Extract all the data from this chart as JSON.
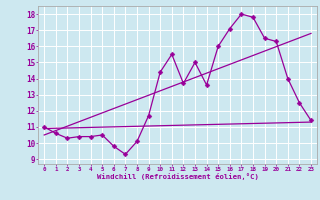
{
  "xlabel": "Windchill (Refroidissement éolien,°C)",
  "background_color": "#cde8f0",
  "grid_color": "#ffffff",
  "line_color": "#990099",
  "xlim": [
    -0.5,
    23.5
  ],
  "ylim": [
    8.7,
    18.5
  ],
  "xticks": [
    0,
    1,
    2,
    3,
    4,
    5,
    6,
    7,
    8,
    9,
    10,
    11,
    12,
    13,
    14,
    15,
    16,
    17,
    18,
    19,
    20,
    21,
    22,
    23
  ],
  "yticks": [
    9,
    10,
    11,
    12,
    13,
    14,
    15,
    16,
    17,
    18
  ],
  "series1_x": [
    0,
    1,
    2,
    3,
    4,
    5,
    6,
    7,
    8,
    9,
    10,
    11,
    12,
    13,
    14,
    15,
    16,
    17,
    18,
    19,
    20,
    21,
    22,
    23
  ],
  "series1_y": [
    11.0,
    10.6,
    10.3,
    10.4,
    10.4,
    10.5,
    9.8,
    9.3,
    10.1,
    11.7,
    14.4,
    15.5,
    13.7,
    15.0,
    13.6,
    16.0,
    17.1,
    18.0,
    17.8,
    16.5,
    16.3,
    14.0,
    12.5,
    11.4
  ],
  "series2_x": [
    0,
    23
  ],
  "series2_y": [
    10.5,
    16.8
  ],
  "series3_x": [
    0,
    23
  ],
  "series3_y": [
    10.9,
    11.3
  ],
  "markersize": 2.5,
  "linewidth": 0.9
}
